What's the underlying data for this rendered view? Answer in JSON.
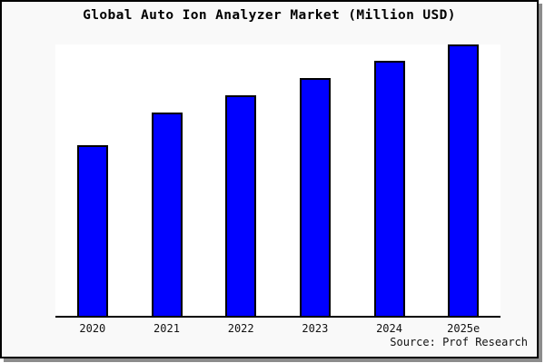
{
  "figure": {
    "title": "Global Auto Ion Analyzer Market (Million USD)",
    "source": "Source: Prof Research",
    "background_color": "#f9f9f9",
    "plot_background_color": "#ffffff",
    "border_color": "#000000",
    "shadow_color": "#8c8c8c"
  },
  "chart_data": {
    "type": "bar",
    "title": "Global Auto Ion Analyzer Market (Million USD)",
    "categories": [
      "2020",
      "2021",
      "2022",
      "2023",
      "2024",
      "2025e"
    ],
    "values": [
      62.5,
      74.5,
      80.8,
      87.1,
      93.5,
      99.4
    ],
    "values_unit": "percent of plot height (chart shows no numeric y-axis; relative bar heights measured from pixels)",
    "xlabel": "",
    "ylabel": "",
    "y_axis": "none (no ticks, no gridlines, no value labels)",
    "legend_position": "none",
    "grid": false,
    "bar_color": "#0000ff",
    "bar_border_color": "#000000",
    "annotations": [
      "Source: Prof Research"
    ]
  }
}
